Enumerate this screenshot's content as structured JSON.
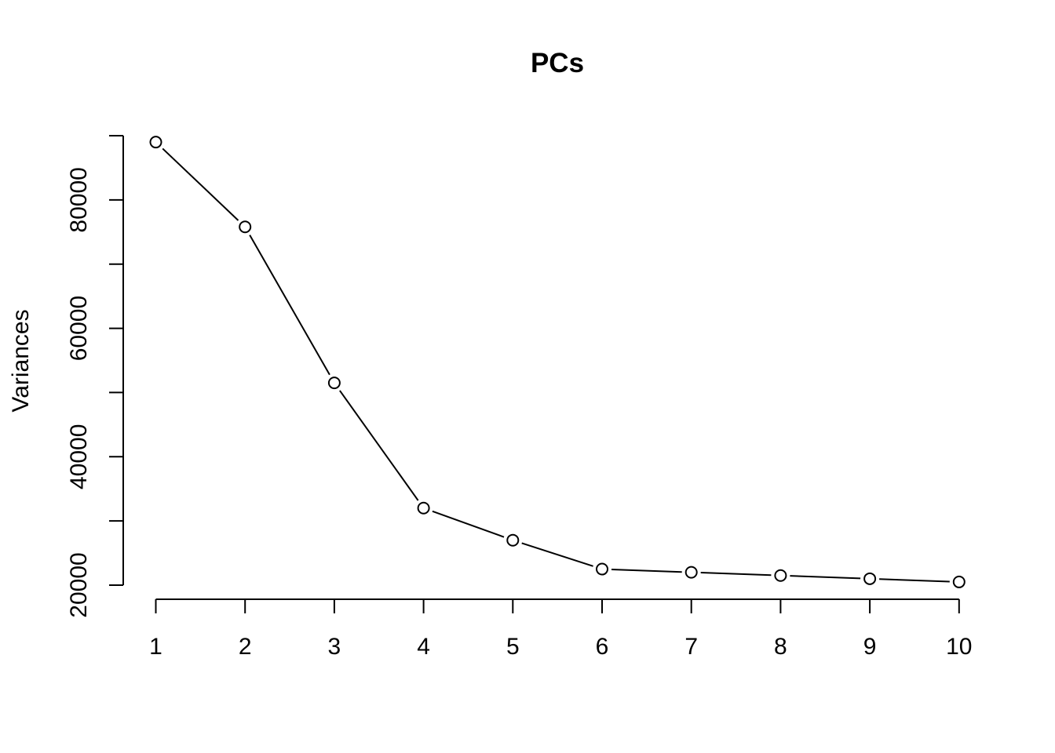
{
  "chart_data": {
    "type": "line",
    "title": "PCs",
    "xlabel": "",
    "ylabel": "Variances",
    "x": [
      1,
      2,
      3,
      4,
      5,
      6,
      7,
      8,
      9,
      10
    ],
    "x_tick_labels": [
      "1",
      "2",
      "3",
      "4",
      "5",
      "6",
      "7",
      "8",
      "9",
      "10"
    ],
    "y_tick_labels": [
      "20000",
      "40000",
      "60000",
      "80000"
    ],
    "y_ticks": [
      20000,
      30000,
      40000,
      50000,
      60000,
      70000,
      80000,
      90000
    ],
    "ylim": [
      20000,
      90000
    ],
    "series": [
      {
        "values": [
          89000,
          75800,
          51500,
          32000,
          27000,
          22500,
          22000,
          21500,
          21000,
          20500
        ]
      }
    ],
    "grid": false,
    "markers": "open-circle"
  }
}
